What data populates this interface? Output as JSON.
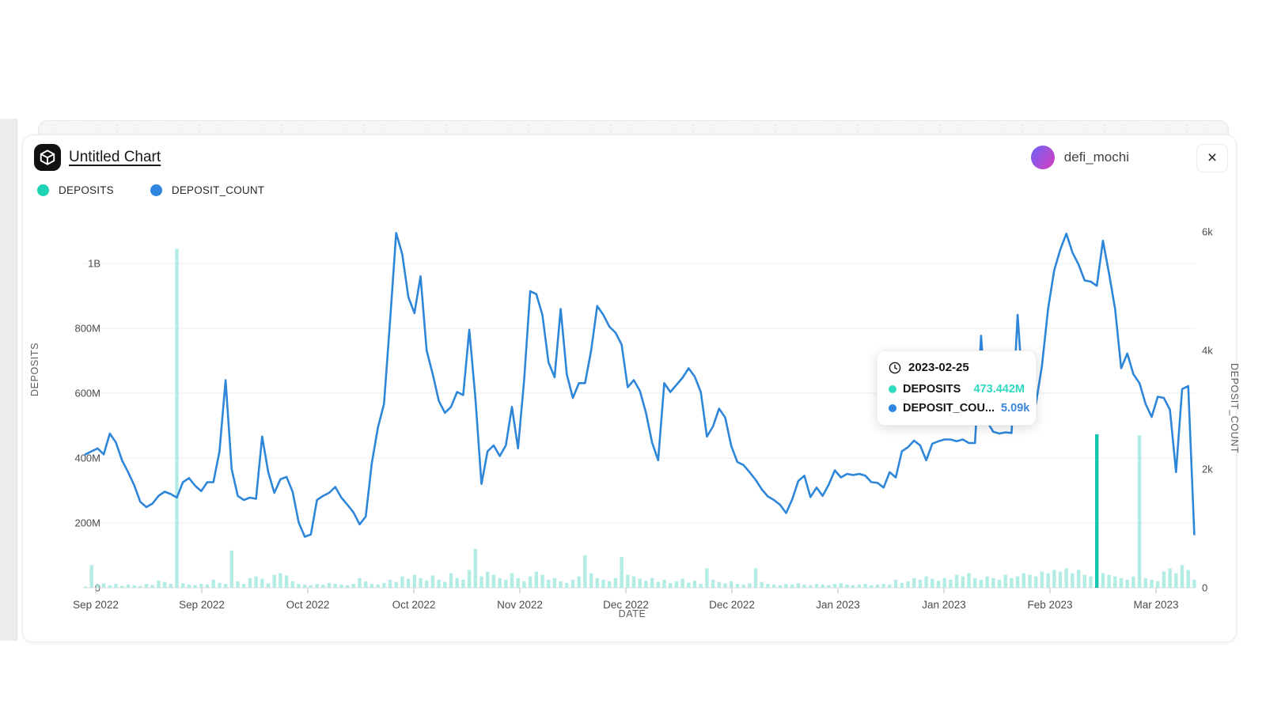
{
  "header": {
    "title": "Untitled Chart",
    "username": "defi_mochi",
    "close_label": "×"
  },
  "legend": [
    {
      "label": "DEPOSITS",
      "color": "#1ed3b4"
    },
    {
      "label": "DEPOSIT_COUNT",
      "color": "#2e86de"
    }
  ],
  "tooltip": {
    "date": "2023-02-25",
    "rows": [
      {
        "label": "DEPOSITS",
        "value": "473.442M",
        "color": "#2fd9c0"
      },
      {
        "label": "DEPOSIT_COU...",
        "value": "5.09k",
        "color": "#3e87d9"
      }
    ]
  },
  "colors": {
    "bar": "#a5e9df",
    "bar_highlight": "#12c7ad",
    "line": "#2e86d9",
    "grid": "#ececec",
    "axis_line": "#dcdcdc",
    "tick_text": "#4a4c50"
  },
  "chart_data": {
    "type": "bar",
    "subtype": "dual-axis bar(DEPOSITS, left, millions) + line(DEPOSIT_COUNT, right, thousands)",
    "title": "Untitled Chart",
    "xlabel": "DATE",
    "ylabel_left": "DEPOSITS",
    "ylabel_right": "DEPOSIT_COUNT",
    "grid": true,
    "legend_position": "top-left",
    "x_ticks": [
      "Sep 2022",
      "Sep 2022",
      "Oct 2022",
      "Oct 2022",
      "Nov 2022",
      "Dec 2022",
      "Dec 2022",
      "Jan 2023",
      "Jan 2023",
      "Feb 2023",
      "Mar 2023"
    ],
    "y_left_ticks": [
      {
        "label": "0",
        "M": 0
      },
      {
        "label": "200M",
        "M": 200
      },
      {
        "label": "400M",
        "M": 400
      },
      {
        "label": "600M",
        "M": 600
      },
      {
        "label": "800M",
        "M": 800
      },
      {
        "label": "1B",
        "M": 1000
      }
    ],
    "y_right_ticks": [
      {
        "label": "0",
        "k": 0
      },
      {
        "label": "2k",
        "k": 2
      },
      {
        "label": "4k",
        "k": 4
      },
      {
        "label": "6k",
        "k": 6
      }
    ],
    "ylim_left_M": [
      0,
      1130
    ],
    "ylim_right_k": [
      0,
      6.3
    ],
    "hover": {
      "date": "2023-02-25",
      "deposits": "473.442M",
      "deposit_count": "5.09k",
      "index": 166
    },
    "series": [
      {
        "name": "DEPOSITS",
        "type": "bar",
        "axis": "left",
        "unit": "M",
        "highlight_index": 166,
        "values": [
          4,
          70,
          10,
          14,
          8,
          12,
          6,
          10,
          8,
          5,
          12,
          9,
          22,
          18,
          12,
          1045,
          14,
          10,
          8,
          12,
          10,
          25,
          15,
          12,
          115,
          20,
          12,
          30,
          35,
          28,
          14,
          40,
          45,
          38,
          20,
          12,
          10,
          8,
          12,
          10,
          15,
          12,
          10,
          8,
          12,
          30,
          20,
          12,
          10,
          15,
          25,
          18,
          35,
          28,
          40,
          30,
          22,
          38,
          25,
          18,
          45,
          30,
          25,
          55,
          120,
          35,
          50,
          40,
          30,
          25,
          45,
          30,
          20,
          35,
          50,
          40,
          25,
          30,
          20,
          15,
          25,
          35,
          100,
          45,
          30,
          25,
          20,
          30,
          95,
          40,
          35,
          28,
          22,
          30,
          18,
          25,
          15,
          20,
          28,
          16,
          22,
          12,
          60,
          25,
          18,
          14,
          20,
          12,
          10,
          14,
          60,
          18,
          12,
          10,
          8,
          12,
          10,
          14,
          10,
          8,
          12,
          10,
          8,
          12,
          14,
          10,
          8,
          10,
          12,
          8,
          10,
          12,
          10,
          25,
          15,
          20,
          30,
          25,
          35,
          28,
          22,
          30,
          25,
          40,
          35,
          45,
          30,
          25,
          35,
          30,
          25,
          40,
          30,
          35,
          45,
          40,
          35,
          50,
          45,
          55,
          50,
          60,
          45,
          55,
          40,
          35,
          473.442,
          45,
          40,
          35,
          30,
          25,
          35,
          470,
          30,
          25,
          20,
          50,
          60,
          45,
          70,
          55,
          25
        ]
      },
      {
        "name": "DEPOSIT_COUNT",
        "type": "line",
        "axis": "right",
        "unit": "k",
        "values": [
          2.25,
          2.3,
          2.35,
          2.25,
          2.6,
          2.45,
          2.15,
          1.95,
          1.73,
          1.45,
          1.36,
          1.42,
          1.55,
          1.62,
          1.58,
          1.52,
          1.78,
          1.85,
          1.72,
          1.63,
          1.78,
          1.78,
          2.3,
          3.5,
          2.0,
          1.55,
          1.48,
          1.52,
          1.5,
          2.55,
          1.95,
          1.6,
          1.83,
          1.87,
          1.62,
          1.1,
          0.86,
          0.9,
          1.48,
          1.55,
          1.6,
          1.7,
          1.52,
          1.4,
          1.27,
          1.07,
          1.2,
          2.1,
          2.7,
          3.1,
          4.5,
          5.98,
          5.62,
          4.9,
          4.63,
          5.25,
          4.0,
          3.6,
          3.15,
          2.95,
          3.05,
          3.3,
          3.25,
          4.35,
          3.2,
          1.75,
          2.3,
          2.4,
          2.22,
          2.4,
          3.05,
          2.35,
          3.5,
          5.0,
          4.95,
          4.6,
          3.8,
          3.55,
          4.7,
          3.6,
          3.2,
          3.45,
          3.45,
          4.0,
          4.75,
          4.6,
          4.4,
          4.3,
          4.1,
          3.38,
          3.5,
          3.32,
          2.95,
          2.45,
          2.15,
          3.45,
          3.3,
          3.42,
          3.54,
          3.7,
          3.56,
          3.3,
          2.55,
          2.72,
          3.02,
          2.87,
          2.39,
          2.12,
          2.07,
          1.95,
          1.82,
          1.66,
          1.54,
          1.48,
          1.4,
          1.26,
          1.49,
          1.8,
          1.89,
          1.53,
          1.69,
          1.55,
          1.74,
          1.98,
          1.86,
          1.92,
          1.9,
          1.92,
          1.89,
          1.78,
          1.77,
          1.69,
          1.95,
          1.86,
          2.3,
          2.37,
          2.48,
          2.4,
          2.15,
          2.43,
          2.47,
          2.5,
          2.5,
          2.47,
          2.5,
          2.44,
          2.44,
          4.25,
          2.8,
          2.63,
          2.6,
          2.62,
          2.61,
          4.6,
          3.1,
          2.98,
          3.1,
          3.75,
          4.7,
          5.35,
          5.7,
          5.97,
          5.65,
          5.45,
          5.18,
          5.16,
          5.09,
          5.85,
          5.3,
          4.7,
          3.7,
          3.95,
          3.6,
          3.45,
          3.1,
          2.88,
          3.22,
          3.2,
          3.0,
          1.95,
          3.35,
          3.4,
          0.9
        ]
      }
    ]
  }
}
